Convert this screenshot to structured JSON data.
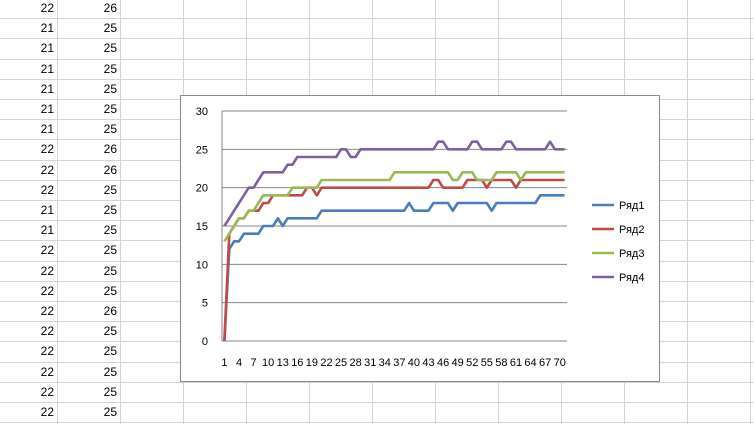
{
  "sheet": {
    "col_a": [
      22,
      21,
      21,
      21,
      21,
      21,
      21,
      22,
      22,
      22,
      21,
      21,
      22,
      22,
      22,
      22,
      22,
      22,
      22,
      22,
      22
    ],
    "col_b": [
      26,
      25,
      25,
      25,
      25,
      25,
      25,
      26,
      26,
      25,
      25,
      25,
      25,
      25,
      25,
      26,
      25,
      25,
      25,
      25,
      25
    ],
    "colors": {
      "gridline": "#d4d4d4",
      "cell_border": "#d9d9d9"
    }
  },
  "chart_data": {
    "type": "line",
    "title": "",
    "xlabel": "",
    "ylabel": "",
    "ylim": [
      0,
      30
    ],
    "yticks": [
      0,
      5,
      10,
      15,
      20,
      25,
      30
    ],
    "x_tick_labels": [
      "1",
      "4",
      "7",
      "10",
      "13",
      "16",
      "19",
      "22",
      "25",
      "28",
      "31",
      "34",
      "37",
      "40",
      "43",
      "46",
      "49",
      "52",
      "55",
      "58",
      "61",
      "64",
      "67",
      "70"
    ],
    "grid": "horizontal",
    "legend_position": "right",
    "series": [
      {
        "name": "Ряд1",
        "color": "#4a7ebb",
        "values": [
          0,
          12,
          13,
          13,
          14,
          14,
          14,
          14,
          15,
          15,
          15,
          16,
          15,
          16,
          16,
          16,
          16,
          16,
          16,
          16,
          17,
          17,
          17,
          17,
          17,
          17,
          17,
          17,
          17,
          17,
          17,
          17,
          17,
          17,
          17,
          17,
          17,
          17,
          18,
          17,
          17,
          17,
          17,
          18,
          18,
          18,
          18,
          17,
          18,
          18,
          18,
          18,
          18,
          18,
          18,
          17,
          18,
          18,
          18,
          18,
          18,
          18,
          18,
          18,
          18,
          19,
          19,
          19,
          19,
          19,
          19
        ]
      },
      {
        "name": "Ряд2",
        "color": "#be4b48",
        "values": [
          0,
          14,
          15,
          16,
          16,
          17,
          17,
          17,
          18,
          18,
          19,
          19,
          19,
          19,
          19,
          19,
          19,
          20,
          20,
          19,
          20,
          20,
          20,
          20,
          20,
          20,
          20,
          20,
          20,
          20,
          20,
          20,
          20,
          20,
          20,
          20,
          20,
          20,
          20,
          20,
          20,
          20,
          20,
          21,
          21,
          20,
          20,
          20,
          20,
          20,
          21,
          21,
          21,
          21,
          20,
          21,
          21,
          21,
          21,
          21,
          20,
          21,
          21,
          21,
          21,
          21,
          21,
          21,
          21,
          21,
          21
        ]
      },
      {
        "name": "Ряд3",
        "color": "#98b954",
        "values": [
          13,
          14,
          15,
          16,
          16,
          17,
          17,
          18,
          19,
          19,
          19,
          19,
          19,
          19,
          20,
          20,
          20,
          20,
          20,
          20,
          21,
          21,
          21,
          21,
          21,
          21,
          21,
          21,
          21,
          21,
          21,
          21,
          21,
          21,
          21,
          22,
          22,
          22,
          22,
          22,
          22,
          22,
          22,
          22,
          22,
          22,
          22,
          21,
          21,
          22,
          22,
          22,
          21,
          21,
          21,
          21,
          22,
          22,
          22,
          22,
          22,
          21,
          22,
          22,
          22,
          22,
          22,
          22,
          22,
          22,
          22
        ]
      },
      {
        "name": "Ряд4",
        "color": "#7d60a0",
        "values": [
          15,
          16,
          17,
          18,
          19,
          20,
          20,
          21,
          22,
          22,
          22,
          22,
          22,
          23,
          23,
          24,
          24,
          24,
          24,
          24,
          24,
          24,
          24,
          24,
          25,
          25,
          24,
          24,
          25,
          25,
          25,
          25,
          25,
          25,
          25,
          25,
          25,
          25,
          25,
          25,
          25,
          25,
          25,
          25,
          26,
          26,
          25,
          25,
          25,
          25,
          25,
          26,
          26,
          25,
          25,
          25,
          25,
          25,
          26,
          26,
          25,
          25,
          25,
          25,
          25,
          25,
          25,
          26,
          25,
          25,
          25
        ]
      }
    ]
  }
}
